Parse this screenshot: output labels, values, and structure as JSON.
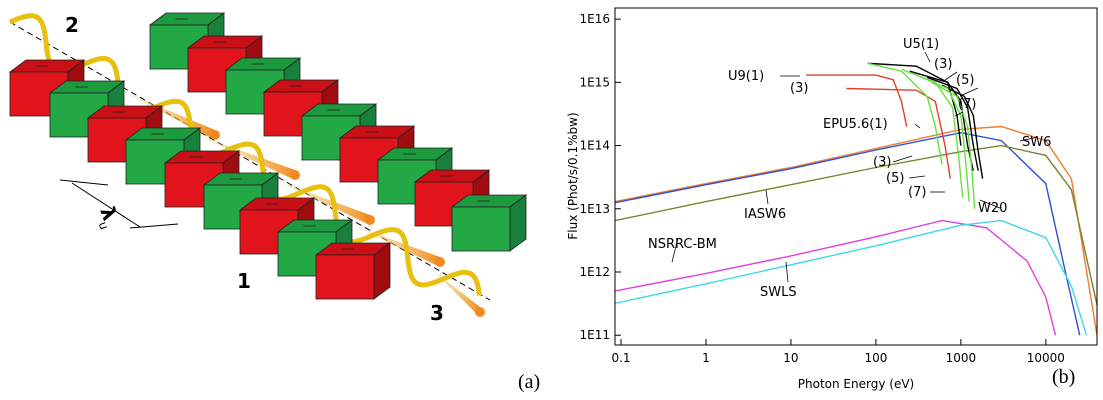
{
  "panel_a": {
    "labels": [
      "1",
      "2",
      "3"
    ],
    "period_symbol": "λ",
    "period_subscript": "u",
    "caption": "(a)"
  },
  "chart_data": {
    "type": "line",
    "x_label": "Photon Energy (eV)",
    "y_label": "Flux (Phot/s/0.1%bw)",
    "caption": "(b)",
    "log_x": true,
    "log_y": true,
    "xlim": [
      0.085,
      40000
    ],
    "ylim": [
      70000000000.0,
      1.5e+16
    ],
    "xticks": [
      0.1,
      1,
      10,
      100,
      1000,
      10000
    ],
    "yticks": [
      {
        "value": 100000000000.0,
        "label": "1E11"
      },
      {
        "value": 1000000000000.0,
        "label": "1E12"
      },
      {
        "value": 10000000000000.0,
        "label": "1E13"
      },
      {
        "value": 100000000000000.0,
        "label": "1E14"
      },
      {
        "value": 1000000000000000.0,
        "label": "1E15"
      },
      {
        "value": 1e+16,
        "label": "1E16"
      }
    ],
    "series": [
      {
        "name": "SW6",
        "color": "#f07d2e",
        "x": [
          0.085,
          1,
          10,
          100,
          1000,
          3000,
          10000,
          20000,
          40000
        ],
        "values": [
          13000000000000.0,
          25000000000000.0,
          45000000000000.0,
          90000000000000.0,
          180000000000000.0,
          200000000000000.0,
          120000000000000.0,
          30000000000000.0,
          100000000000.0
        ]
      },
      {
        "name": "W20",
        "color": "#2f4fd6",
        "x": [
          0.085,
          1,
          10,
          100,
          1000,
          3000,
          10000,
          17000,
          25000
        ],
        "values": [
          12500000000000.0,
          24000000000000.0,
          43000000000000.0,
          85000000000000.0,
          160000000000000.0,
          120000000000000.0,
          25000000000000.0,
          1000000000000.0,
          100000000000.0
        ]
      },
      {
        "name": "IASW6",
        "color": "#808030",
        "x": [
          0.085,
          1,
          10,
          100,
          1000,
          3000,
          10000,
          20000,
          40000
        ],
        "values": [
          6500000000000.0,
          13000000000000.0,
          24000000000000.0,
          45000000000000.0,
          80000000000000.0,
          100000000000000.0,
          70000000000000.0,
          20000000000000.0,
          300000000000.0
        ]
      },
      {
        "name": "NSRRC-BM",
        "color": "#e040e0",
        "x": [
          0.085,
          1,
          10,
          100,
          600,
          2000,
          6000,
          10000,
          13000
        ],
        "values": [
          500000000000.0,
          950000000000.0,
          1800000000000.0,
          3600000000000.0,
          6500000000000.0,
          5000000000000.0,
          1500000000000.0,
          400000000000.0,
          100000000000.0
        ]
      },
      {
        "name": "SWLS",
        "color": "#40d8e8",
        "x": [
          0.085,
          1,
          10,
          100,
          1000,
          3000,
          10000,
          20000,
          30000
        ],
        "values": [
          320000000000.0,
          650000000000.0,
          1300000000000.0,
          2600000000000.0,
          5500000000000.0,
          6500000000000.0,
          3500000000000.0,
          600000000000.0,
          100000000000.0
        ]
      },
      {
        "name": "U9(1)",
        "color": "#e0402a",
        "x": [
          15,
          100,
          160,
          200,
          230
        ],
        "values": [
          1300000000000000.0,
          1300000000000000.0,
          1100000000000000.0,
          500000000000000.0,
          200000000000000.0
        ]
      },
      {
        "name": "(3)",
        "color": "#e0402a",
        "x": [
          45,
          300,
          500,
          650,
          750
        ],
        "values": [
          800000000000000.0,
          750000000000000.0,
          500000000000000.0,
          100000000000000.0,
          30000000000000.0
        ]
      },
      {
        "name": "U5(1)",
        "color": "#000000",
        "x": [
          80,
          300,
          700,
          900,
          1000
        ],
        "values": [
          2000000000000000.0,
          1800000000000000.0,
          1000000000000000.0,
          300000000000000.0,
          100000000000000.0
        ]
      },
      {
        "name": "(3)",
        "color": "#000000",
        "x": [
          250,
          700,
          1000,
          1200,
          1400
        ],
        "values": [
          1500000000000000.0,
          1000000000000000.0,
          500000000000000.0,
          100000000000000.0,
          40000000000000.0
        ]
      },
      {
        "name": "(5)",
        "color": "#000000",
        "x": [
          400,
          900,
          1200,
          1400,
          1600
        ],
        "values": [
          1200000000000000.0,
          800000000000000.0,
          400000000000000.0,
          100000000000000.0,
          40000000000000.0
        ]
      },
      {
        "name": "(7)",
        "color": "#000000",
        "x": [
          600,
          1100,
          1400,
          1600,
          1800
        ],
        "values": [
          900000000000000.0,
          600000000000000.0,
          300000000000000.0,
          80000000000000.0,
          30000000000000.0
        ]
      },
      {
        "name": "EPU5.6(1)",
        "color": "#66e040",
        "x": [
          80,
          200,
          400,
          500,
          600
        ],
        "values": [
          2000000000000000.0,
          1500000000000000.0,
          600000000000000.0,
          200000000000000.0,
          50000000000000.0
        ]
      },
      {
        "name": "(3)",
        "color": "#66e040",
        "x": [
          200,
          500,
          800,
          950,
          1050
        ],
        "values": [
          1600000000000000.0,
          1000000000000000.0,
          400000000000000.0,
          60000000000000.0,
          15000000000000.0
        ]
      },
      {
        "name": "(5)",
        "color": "#66e040",
        "x": [
          300,
          700,
          1000,
          1150,
          1250
        ],
        "values": [
          1300000000000000.0,
          800000000000000.0,
          300000000000000.0,
          50000000000000.0,
          13000000000000.0
        ]
      },
      {
        "name": "(7)",
        "color": "#66e040",
        "x": [
          450,
          900,
          1200,
          1350,
          1450
        ],
        "values": [
          1000000000000000.0,
          600000000000000.0,
          200000000000000.0,
          40000000000000.0,
          10000000000000.0
        ]
      }
    ]
  }
}
